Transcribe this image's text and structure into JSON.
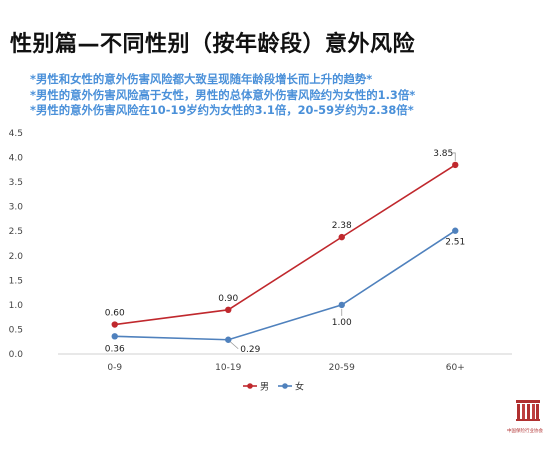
{
  "page": {
    "title": "性别篇—不同性别（按年龄段）意外风险",
    "notes": [
      "*男性和女性的意外伤害风险都大致呈现随年龄段增长而上升的趋势*",
      "*男性的意外伤害风险高于女性，男性的总体意外伤害风险约为女性的1.3倍*",
      "*男性的意外伤害风险在10-19岁约为女性的3.1倍，20-59岁约为2.38倍*"
    ],
    "logo_text": "中国保险行业协会"
  },
  "chart_data": {
    "type": "line",
    "categories": [
      "0-9",
      "10-19",
      "20-59",
      "60+"
    ],
    "series": [
      {
        "name": "男",
        "color": "#c0282d",
        "values": [
          0.6,
          0.9,
          2.38,
          3.85
        ],
        "labels": [
          "0.60",
          "0.90",
          "2.38",
          "3.85"
        ]
      },
      {
        "name": "女",
        "color": "#4f81bd",
        "values": [
          0.36,
          0.29,
          1.0,
          2.51
        ],
        "labels": [
          "0.36",
          "0.29",
          "1.00",
          "2.51"
        ]
      }
    ],
    "ylim": [
      0,
      4.5
    ],
    "yticks": [
      "0.0",
      "0.5",
      "1.0",
      "1.5",
      "2.0",
      "2.5",
      "3.0",
      "3.5",
      "4.0",
      "4.5"
    ],
    "grid": false,
    "legend": "bottom",
    "xlabel": "",
    "ylabel": ""
  }
}
